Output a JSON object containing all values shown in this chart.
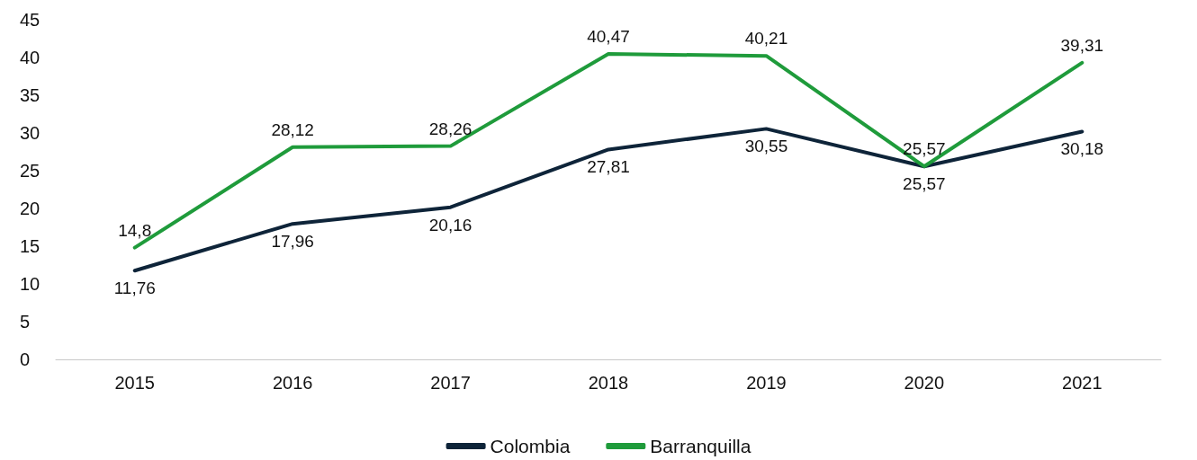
{
  "chart_data": {
    "type": "line",
    "categories": [
      "2015",
      "2016",
      "2017",
      "2018",
      "2019",
      "2020",
      "2021"
    ],
    "series": [
      {
        "name": "Colombia",
        "color": "#0e2439",
        "values": [
          11.76,
          17.96,
          20.16,
          27.81,
          30.55,
          25.57,
          30.18
        ],
        "value_labels": [
          "11,76",
          "17,96",
          "20,16",
          "27,81",
          "30,55",
          "25,57",
          "30,18"
        ]
      },
      {
        "name": "Barranquilla",
        "color": "#1f9b3b",
        "values": [
          14.8,
          28.12,
          28.26,
          40.47,
          40.21,
          25.57,
          39.31
        ],
        "value_labels": [
          "14,8",
          "28,12",
          "28,26",
          "40,47",
          "40,21",
          "25,57",
          "39,31"
        ]
      }
    ],
    "ylim": [
      0,
      45
    ],
    "yticks": [
      0,
      5,
      10,
      15,
      20,
      25,
      30,
      35,
      40,
      45
    ],
    "grid": false,
    "legend": "bottom",
    "marker": "none",
    "line_style": "solid"
  }
}
